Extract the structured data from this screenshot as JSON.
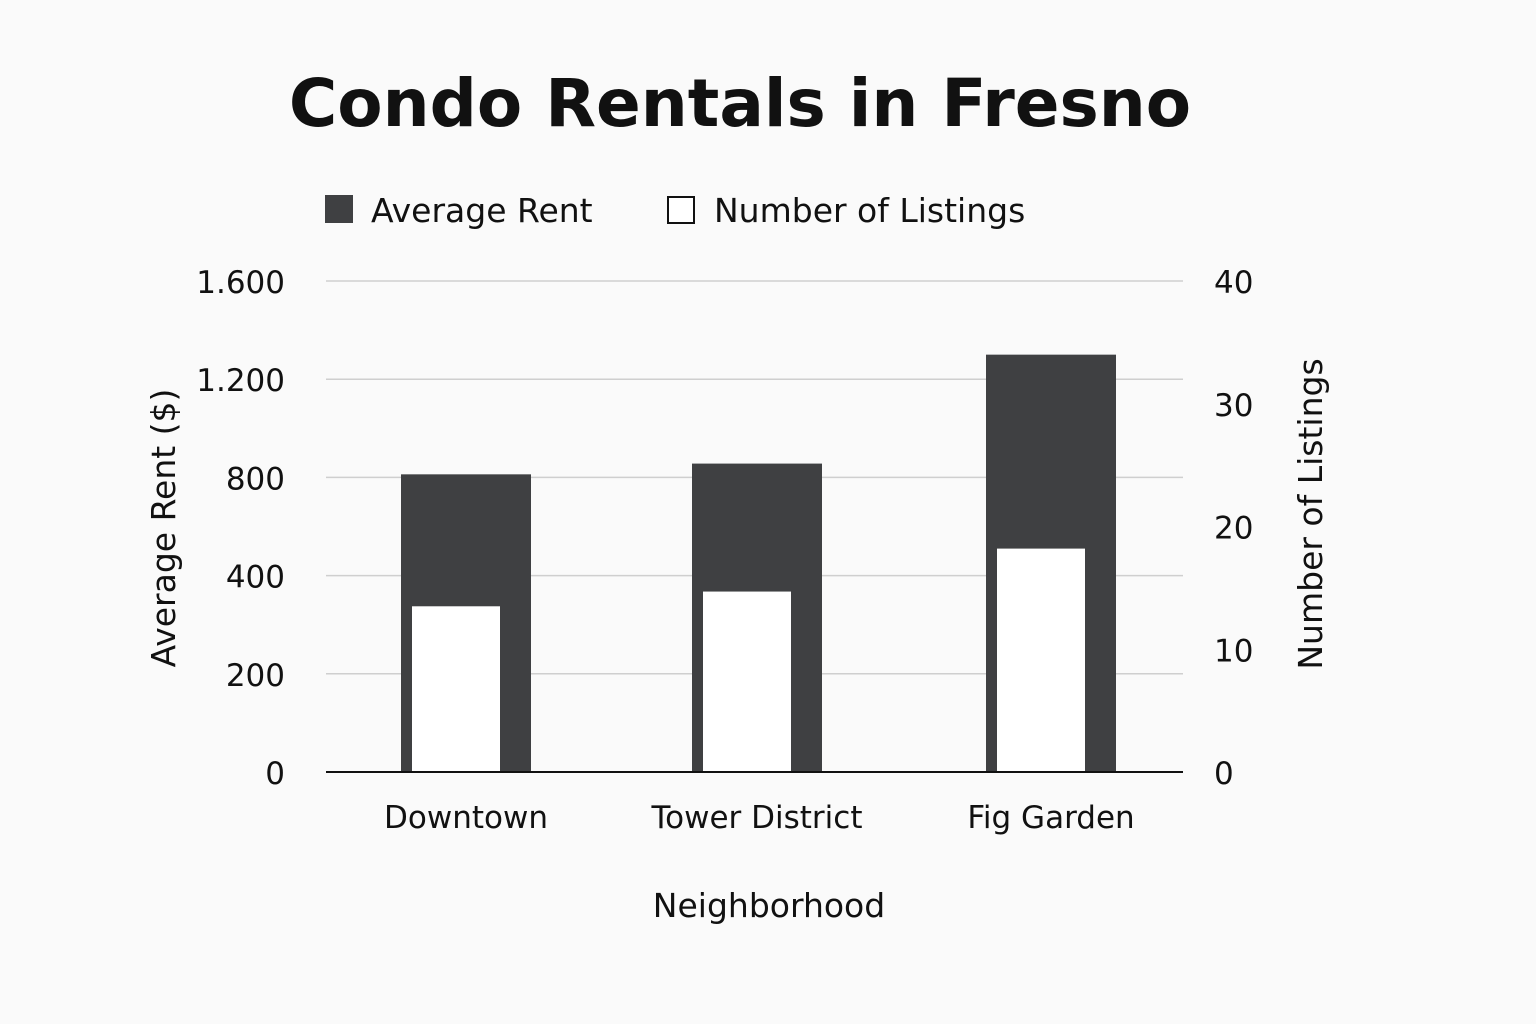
{
  "chart_data": {
    "type": "bar",
    "title": "Condo Rentals in Fresno",
    "xlabel": "Neighborhood",
    "categories": [
      "Downtown",
      "Tower District",
      "Fig Garden"
    ],
    "series": [
      {
        "name": "Average Rent",
        "axis": "left",
        "color": "#3f4042",
        "values": [
          970,
          1005,
          1360
        ]
      },
      {
        "name": "Number of Listings",
        "axis": "right",
        "color": "#ffffff",
        "values": [
          13.5,
          14.7,
          18.2
        ]
      }
    ],
    "y_left": {
      "label": "Average Rent ($)",
      "ylim": [
        0,
        1600
      ],
      "tick_values": [
        0,
        200,
        400,
        800,
        1200,
        1600
      ],
      "tick_labels": [
        "0",
        "200",
        "400",
        "800",
        "1.200",
        "1.600"
      ]
    },
    "y_right": {
      "label": "Number of Listings",
      "ylim": [
        0,
        40
      ],
      "tick_values": [
        0,
        10,
        20,
        30,
        40
      ],
      "tick_labels": [
        "0",
        "10",
        "20",
        "30",
        "40"
      ]
    },
    "grid": true,
    "legend_position": "top-left"
  }
}
